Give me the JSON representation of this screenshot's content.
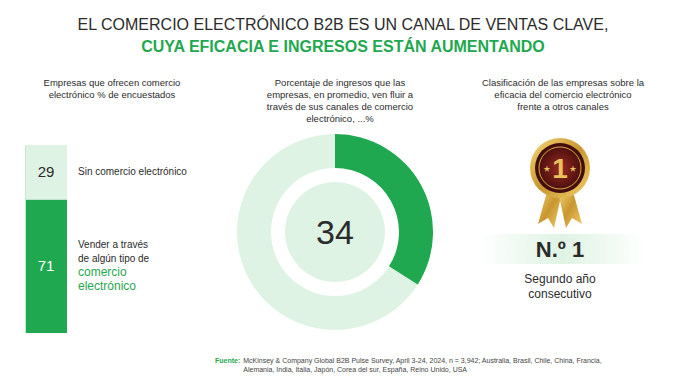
{
  "header": {
    "line1": "EL COMERCIO ELECTRÓNICO B2B ES UN CANAL DE VENTAS CLAVE,",
    "line2": "CUYA EFICACIA E INGRESOS ESTÁN AUMENTANDO"
  },
  "chart_data": [
    {
      "type": "bar",
      "stacked": true,
      "title": "Empresas que ofrecen comercio electrónico % de encuestados",
      "categories": [
        null
      ],
      "series": [
        {
          "name": "Vender a través de algún tipo de comercio electrónico",
          "color": "#1fa84f",
          "values": [
            71
          ]
        },
        {
          "name": "Sin comercio electrónico",
          "color": "#dff3e4",
          "values": [
            29
          ]
        }
      ],
      "ylim": [
        0,
        100
      ],
      "data_labels": true,
      "tick_labels": false
    },
    {
      "type": "donut",
      "title": "Porcentaje de ingresos que las empresas, en promedio, ven fluir a través de sus canales de comercio electrónico, ...%",
      "values": [
        34
      ],
      "ylim": [
        0,
        100
      ],
      "color": "#1fa84f",
      "data_labels": true
    }
  ],
  "ranking": {
    "title": "Clasificación de las empresas sobre la eficacia del comercio electrónico frente a otros canales",
    "value": 1,
    "value_label": "N.º 1",
    "note": "Segundo año consecutivo"
  },
  "source": {
    "label": "Fuente:",
    "lines": [
      "McKinsey & Company Global B2B Pulse Survey, April 3-24, 2024, n = 3,942; Australia, Brasil, Chile, China, Francia,",
      "Alemania, India, Italia, Japón, Corea del sur, España, Reino Unido, USA"
    ]
  }
}
